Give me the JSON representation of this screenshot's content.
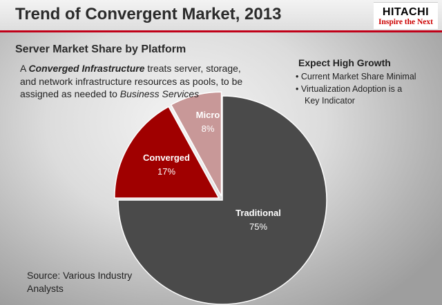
{
  "title": "Trend of Convergent Market, 2013",
  "logo": {
    "name": "HITACHI",
    "tagline": "Inspire the Next"
  },
  "subtitle": "Server Market Share by Platform",
  "description": {
    "part1": "A ",
    "emphasis": "Converged Infrastructure",
    "part2": " treats server, storage, and network infrastructure resources as pools, to be assigned as needed to ",
    "emphasis2": "Business Services"
  },
  "growth": {
    "title": "Expect High Growth",
    "bullets": [
      "Current Market Share Minimal",
      "Virtualization Adoption is a Key Indicator"
    ]
  },
  "source": "Source: Various Industry Analysts",
  "chart_data": {
    "type": "pie",
    "title": "Server Market Share by Platform",
    "slices": [
      {
        "name": "Traditional",
        "value": 75,
        "label": "75%",
        "color": "#4a4a4a"
      },
      {
        "name": "Converged",
        "value": 17,
        "label": "17%",
        "color": "#a00000"
      },
      {
        "name": "Micro",
        "value": 8,
        "label": "8%",
        "color": "#c89898"
      }
    ]
  }
}
